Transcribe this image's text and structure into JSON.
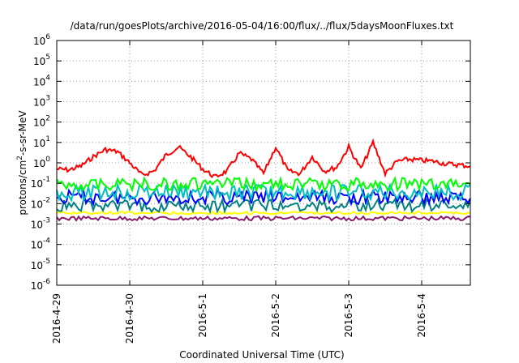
{
  "chart_data": {
    "type": "line",
    "title": "/data/run/goesPlots/archive/2016-05-04/16:00/flux/../flux/5daysMoonFluxes.txt",
    "xlabel": "Coordinated Universal Time (UTC)",
    "ylabel_parts": [
      "protons/cm",
      "2",
      "-s-sr-MeV"
    ],
    "y_scale": "log",
    "ylim": [
      1e-06,
      1000000.0
    ],
    "y_ticks": [
      {
        "base": "10",
        "exp": "-6",
        "value": 1e-06
      },
      {
        "base": "10",
        "exp": "-5",
        "value": 1e-05
      },
      {
        "base": "10",
        "exp": "-4",
        "value": 0.0001
      },
      {
        "base": "10",
        "exp": "-3",
        "value": 0.001
      },
      {
        "base": "10",
        "exp": "-2",
        "value": 0.01
      },
      {
        "base": "10",
        "exp": "-1",
        "value": 0.1
      },
      {
        "base": "10",
        "exp": "0",
        "value": 1
      },
      {
        "base": "10",
        "exp": "1",
        "value": 10
      },
      {
        "base": "10",
        "exp": "2",
        "value": 100
      },
      {
        "base": "10",
        "exp": "3",
        "value": 1000
      },
      {
        "base": "10",
        "exp": "4",
        "value": 10000
      },
      {
        "base": "10",
        "exp": "5",
        "value": 100000
      },
      {
        "base": "10",
        "exp": "6",
        "value": 1000000
      }
    ],
    "x_range": [
      "2016-04-29",
      "2016-05-04T16:00"
    ],
    "x_ticks": [
      "2016-4-29",
      "2016-4-30",
      "2016-5-1",
      "2016-5-2",
      "2016-5-3",
      "2016-5-4"
    ],
    "grid": true,
    "series": [
      {
        "color": "#ff0000",
        "x": [
          "2016-04-29T00:00",
          "2016-04-29T04:00",
          "2016-04-29T08:00",
          "2016-04-29T12:00",
          "2016-04-29T16:00",
          "2016-04-29T20:00",
          "2016-04-30T00:00",
          "2016-04-30T04:00",
          "2016-04-30T08:00",
          "2016-04-30T12:00",
          "2016-04-30T16:00",
          "2016-04-30T20:00",
          "2016-05-01T00:00",
          "2016-05-01T04:00",
          "2016-05-01T08:00",
          "2016-05-01T12:00",
          "2016-05-01T16:00",
          "2016-05-01T20:00",
          "2016-05-02T00:00",
          "2016-05-02T04:00",
          "2016-05-02T08:00",
          "2016-05-02T12:00",
          "2016-05-02T16:00",
          "2016-05-02T20:00",
          "2016-05-03T00:00",
          "2016-05-03T04:00",
          "2016-05-03T08:00",
          "2016-05-03T12:00",
          "2016-05-03T16:00",
          "2016-05-03T20:00",
          "2016-05-04T00:00",
          "2016-05-04T04:00",
          "2016-05-04T08:00",
          "2016-05-04T12:00",
          "2016-05-04T16:00"
        ],
        "values": [
          0.5,
          0.45,
          0.7,
          2,
          4.5,
          3.5,
          1,
          0.25,
          0.4,
          2.5,
          6,
          2,
          0.5,
          0.2,
          0.4,
          3,
          1.5,
          0.3,
          6,
          0.4,
          0.3,
          2,
          0.4,
          0.6,
          6,
          0.5,
          10,
          0.3,
          1.2,
          1.5,
          1.3,
          1.2,
          0.9,
          0.8,
          0.7
        ]
      },
      {
        "color": "#00ff00",
        "flat": 0.09,
        "var": 0.35
      },
      {
        "color": "#00bfbf",
        "flat": 0.035,
        "var": 0.45
      },
      {
        "color": "#0000ff",
        "flat": 0.02,
        "var": 0.4
      },
      {
        "color": "#008080",
        "flat": 0.008,
        "var": 0.35
      },
      {
        "color": "#ffff00",
        "flat": 0.0035,
        "var": 0.08
      },
      {
        "color": "#8b1a6b",
        "flat": 0.0019,
        "var": 0.12
      }
    ]
  }
}
